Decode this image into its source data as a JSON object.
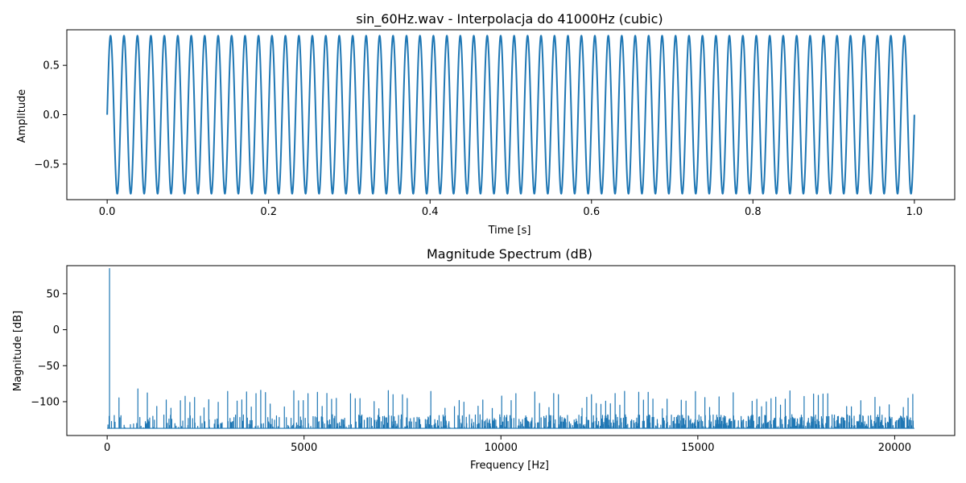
{
  "figure": {
    "line_color": "#1f77b4",
    "background": "#ffffff"
  },
  "chart_data": [
    {
      "type": "line",
      "title": "sin_60Hz.wav - Interpolacja do 41000Hz (cubic)",
      "xlabel": "Time [s]",
      "ylabel": "Amplitude",
      "xlim": [
        -0.05,
        1.05
      ],
      "ylim": [
        -0.86,
        0.86
      ],
      "xticks": [
        0.0,
        0.2,
        0.4,
        0.6,
        0.8,
        1.0
      ],
      "xtick_labels": [
        "0.0",
        "0.2",
        "0.4",
        "0.6",
        "0.8",
        "1.0"
      ],
      "yticks": [
        0.5,
        0.0,
        -0.5
      ],
      "ytick_labels": [
        "0.5",
        "0.0",
        "−0.5"
      ],
      "grid": false,
      "series": [
        {
          "signal": "sine",
          "frequency_hz": 60,
          "amplitude": 0.8,
          "duration_s": 1.0,
          "sample_rate_hz": 41000
        }
      ]
    },
    {
      "type": "line",
      "title": "Magnitude Spectrum (dB)",
      "xlabel": "Frequency [Hz]",
      "ylabel": "Magnitude [dB]",
      "xlim": [
        -1025,
        21525
      ],
      "ylim": [
        -147,
        89
      ],
      "xticks": [
        0,
        5000,
        10000,
        15000,
        20000
      ],
      "xtick_labels": [
        "0",
        "5000",
        "10000",
        "15000",
        "20000"
      ],
      "yticks": [
        50,
        0,
        -50,
        -100
      ],
      "ytick_labels": [
        "50",
        "0",
        "−50",
        "−100"
      ],
      "grid": false,
      "series": [
        {
          "peak": {
            "x": 60,
            "y": 85
          },
          "noise_floor_db": -137,
          "x_max_hz": 20500,
          "spur_spacing_hz": 120,
          "spur_range_db": [
            -110,
            -82
          ],
          "grass_max_db": -118
        }
      ]
    }
  ]
}
